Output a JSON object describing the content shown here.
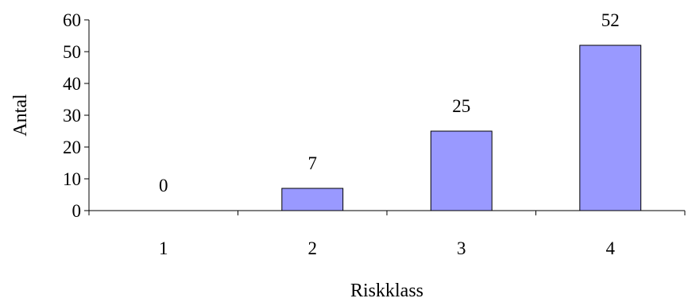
{
  "chart_data": {
    "type": "bar",
    "categories": [
      "1",
      "2",
      "3",
      "4"
    ],
    "values": [
      0,
      7,
      25,
      52
    ],
    "data_labels": [
      "0",
      "7",
      "25",
      "52"
    ],
    "xlabel": "Riskklass",
    "ylabel": "Antal",
    "ylim": [
      0,
      60
    ],
    "yticks": [
      "0",
      "10",
      "20",
      "30",
      "40",
      "50",
      "60"
    ],
    "bar_color": "#9999FF",
    "grid": false,
    "legend": "none"
  }
}
